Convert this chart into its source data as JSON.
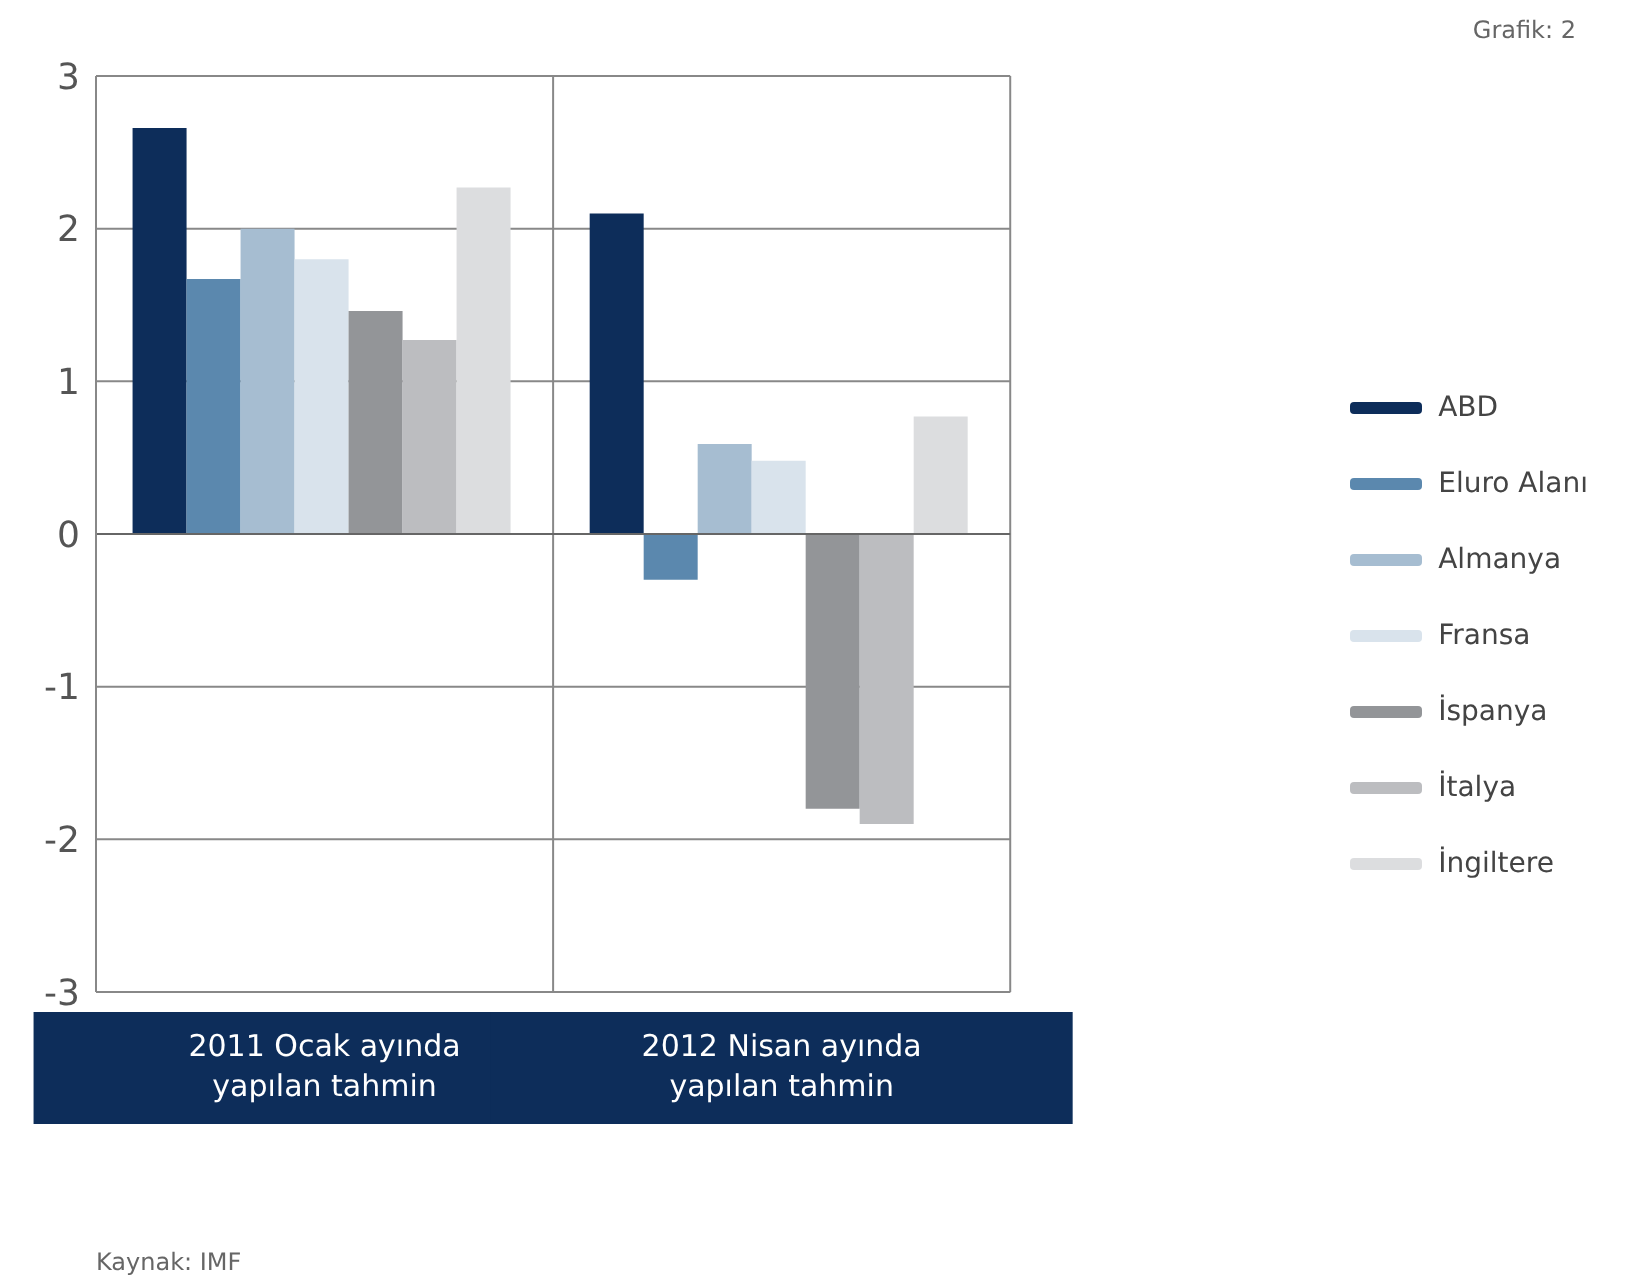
{
  "chart_data": {
    "type": "bar",
    "categories": [
      "2011 Ocak ayında yapılan tahmin",
      "2012 Nisan ayında yapılan tahmin"
    ],
    "series": [
      {
        "name": "ABD",
        "color": "#0d2d5a",
        "values": [
          2.66,
          2.1
        ]
      },
      {
        "name": "Eluro Alanı",
        "color": "#5b88ae",
        "values": [
          1.67,
          -0.3
        ]
      },
      {
        "name": "Almanya",
        "color": "#a6bdd1",
        "values": [
          2.0,
          0.59
        ]
      },
      {
        "name": "Fransa",
        "color": "#d9e3ec",
        "values": [
          1.8,
          0.48
        ]
      },
      {
        "name": "İspanya",
        "color": "#939598",
        "values": [
          1.46,
          -1.8
        ]
      },
      {
        "name": "İtalya",
        "color": "#bcbdc0",
        "values": [
          1.27,
          -1.9
        ]
      },
      {
        "name": "İngiltere",
        "color": "#dcdddf",
        "values": [
          2.27,
          0.77
        ]
      }
    ],
    "ylim": [
      -3,
      3
    ],
    "yticks": [
      -3,
      -2,
      -1,
      0,
      1,
      2,
      3
    ],
    "grid": "y",
    "legend": "right",
    "annotations": [
      "Grafik: 2",
      "Kaynak: IMF"
    ]
  }
}
